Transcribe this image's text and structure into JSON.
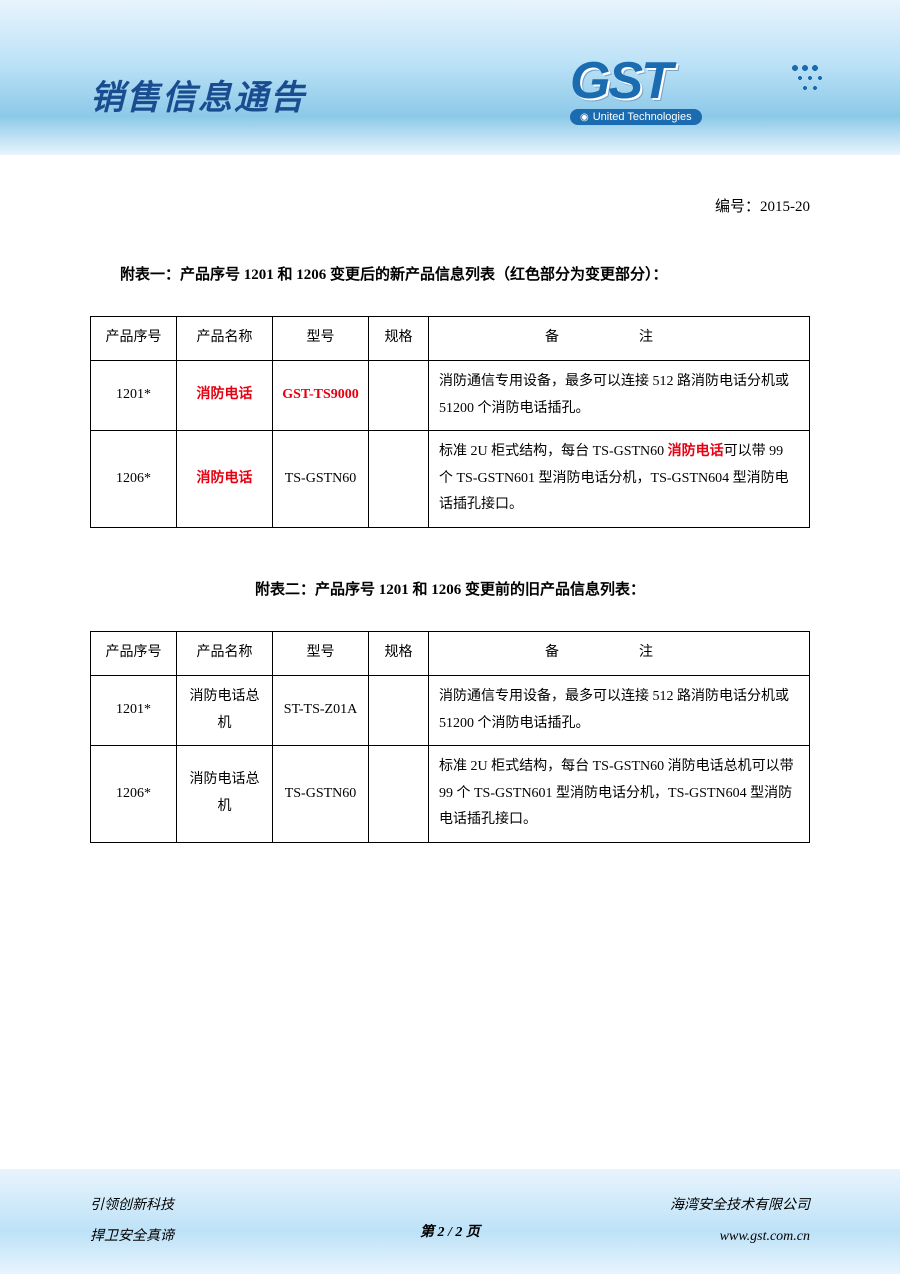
{
  "header": {
    "title": "销售信息通告",
    "logo_text": "GST",
    "logo_sub": "United Technologies",
    "doc_no_label": "编号：",
    "doc_no": "2015-20"
  },
  "section1": {
    "title": "附表一：产品序号 1201 和 1206 变更后的新产品信息列表（红色部分为变更部分）："
  },
  "table_headers": {
    "pno": "产品序号",
    "pname": "产品名称",
    "model": "型号",
    "spec": "规格",
    "remark": "备注"
  },
  "table1": {
    "rows": [
      {
        "pno": "1201*",
        "pname": "消防电话",
        "pname_red": true,
        "model": "GST-TS9000",
        "model_red": true,
        "spec": "",
        "remark_pre": "消防通信专用设备，最多可以连接 512 路消防电话分机或 51200 个消防电话插孔。",
        "remark_red": "",
        "remark_post": ""
      },
      {
        "pno": "1206*",
        "pname": "消防电话",
        "pname_red": true,
        "model": "TS-GSTN60",
        "model_red": false,
        "spec": "",
        "remark_pre": "标准 2U 柜式结构，每台 TS-GSTN60 ",
        "remark_red": "消防电话",
        "remark_post": "可以带 99 个 TS-GSTN601 型消防电话分机，TS-GSTN604 型消防电话插孔接口。"
      }
    ]
  },
  "section2": {
    "title": "附表二：产品序号 1201 和 1206 变更前的旧产品信息列表："
  },
  "table2": {
    "rows": [
      {
        "pno": "1201*",
        "pname": "消防电话总机",
        "model": "ST-TS-Z01A",
        "spec": "",
        "remark": "消防通信专用设备，最多可以连接 512 路消防电话分机或 51200 个消防电话插孔。"
      },
      {
        "pno": "1206*",
        "pname": "消防电话总机",
        "model": "TS-GSTN60",
        "spec": "",
        "remark": "标准 2U 柜式结构，每台 TS-GSTN60 消防电话总机可以带 99 个 TS-GSTN601 型消防电话分机，TS-GSTN604 型消防电话插孔接口。"
      }
    ]
  },
  "footer": {
    "left1": "引领创新科技",
    "left2": "捍卫安全真谛",
    "right1": "海湾安全技术有限公司",
    "right2": "www.gst.com.cn",
    "page": "第 2 / 2 页"
  },
  "colors": {
    "red": "#e60012",
    "blue": "#1a6bb0",
    "text": "#000000"
  }
}
